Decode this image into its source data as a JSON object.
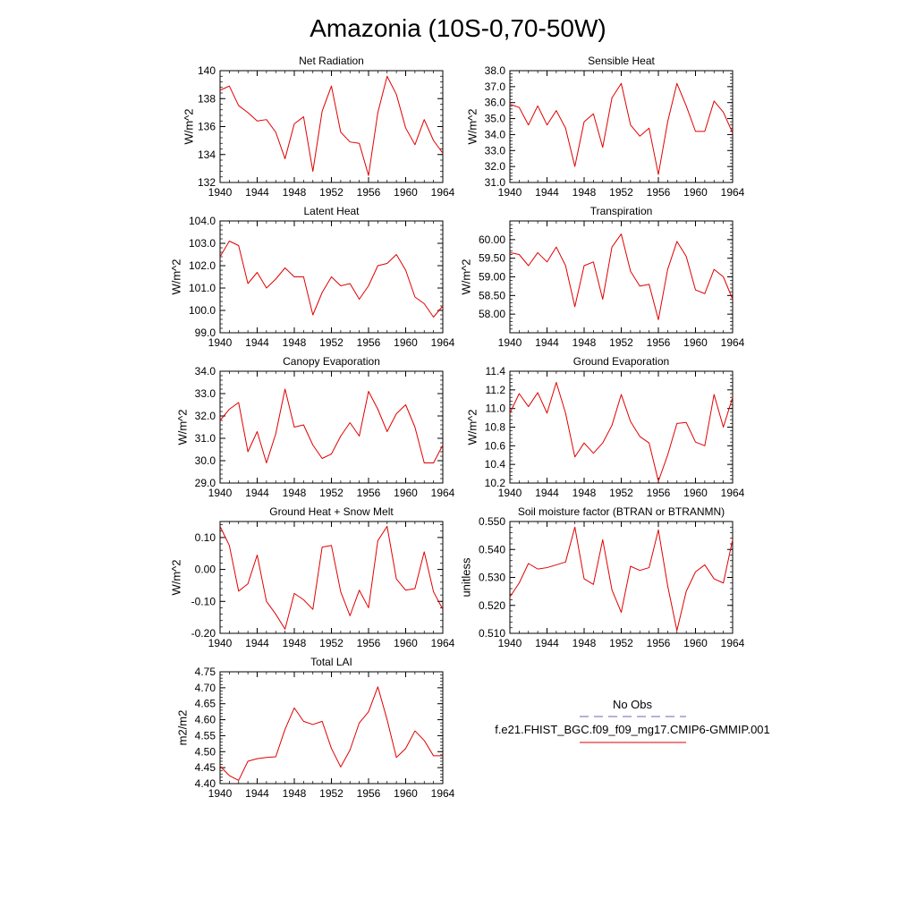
{
  "title": "Amazonia (10S-0,70-50W)",
  "legend": {
    "obs_label": "No Obs",
    "obs_color": "#6666bb",
    "model_label": "f.e21.FHIST_BGC.f09_f09_mg17.CMIP6-GMMIP.001",
    "model_color": "#e00000"
  },
  "chart_data": [
    {
      "type": "line",
      "title": "Net Radiation",
      "ylabel": "W/m^2",
      "xlim": [
        1940,
        1964
      ],
      "ylim": [
        132,
        140
      ],
      "xticks": [
        1940,
        1944,
        1948,
        1952,
        1956,
        1960,
        1964
      ],
      "xtick_labels": [
        "1940",
        "1944",
        "1948",
        "1952",
        "1956",
        "1960",
        "1964"
      ],
      "yticks": [
        132,
        134,
        136,
        138,
        140
      ],
      "ytick_labels": [
        "132",
        "134",
        "136",
        "138",
        "140"
      ],
      "x": [
        1940,
        1941,
        1942,
        1943,
        1944,
        1945,
        1946,
        1947,
        1948,
        1949,
        1950,
        1951,
        1952,
        1953,
        1954,
        1955,
        1956,
        1957,
        1958,
        1959,
        1960,
        1961,
        1962,
        1963,
        1964
      ],
      "series": [
        {
          "values": [
            138.6,
            138.9,
            137.5,
            137.0,
            136.4,
            136.5,
            135.6,
            133.7,
            136.2,
            136.7,
            132.8,
            137.1,
            138.9,
            135.6,
            134.9,
            134.8,
            132.5,
            137.0,
            139.6,
            138.3,
            135.9,
            134.7,
            136.5,
            135.0,
            134.1
          ]
        }
      ]
    },
    {
      "type": "line",
      "title": "Sensible Heat",
      "ylabel": "W/m^2",
      "xlim": [
        1940,
        1964
      ],
      "ylim": [
        31.0,
        38.0
      ],
      "xticks": [
        1940,
        1944,
        1948,
        1952,
        1956,
        1960,
        1964
      ],
      "xtick_labels": [
        "1940",
        "1944",
        "1948",
        "1952",
        "1956",
        "1960",
        "1964"
      ],
      "yticks": [
        31,
        32,
        33,
        34,
        35,
        36,
        37,
        38
      ],
      "ytick_labels": [
        "31.0",
        "32.0",
        "33.0",
        "34.0",
        "35.0",
        "36.0",
        "37.0",
        "38.0"
      ],
      "x": [
        1940,
        1941,
        1942,
        1943,
        1944,
        1945,
        1946,
        1947,
        1948,
        1949,
        1950,
        1951,
        1952,
        1953,
        1954,
        1955,
        1956,
        1957,
        1958,
        1959,
        1960,
        1961,
        1962,
        1963,
        1964
      ],
      "series": [
        {
          "values": [
            35.9,
            35.7,
            34.6,
            35.8,
            34.6,
            35.5,
            34.4,
            32.0,
            34.8,
            35.3,
            33.2,
            36.3,
            37.2,
            34.6,
            33.9,
            34.4,
            31.5,
            34.8,
            37.2,
            35.8,
            34.2,
            34.2,
            36.1,
            35.4,
            34.1
          ]
        }
      ]
    },
    {
      "type": "line",
      "title": "Latent Heat",
      "ylabel": "W/m^2",
      "xlim": [
        1940,
        1964
      ],
      "ylim": [
        99.0,
        104.0
      ],
      "xticks": [
        1940,
        1944,
        1948,
        1952,
        1956,
        1960,
        1964
      ],
      "xtick_labels": [
        "1940",
        "1944",
        "1948",
        "1952",
        "1956",
        "1960",
        "1964"
      ],
      "yticks": [
        99,
        100,
        101,
        102,
        103,
        104
      ],
      "ytick_labels": [
        "99.0",
        "100.0",
        "101.0",
        "102.0",
        "103.0",
        "104.0"
      ],
      "x": [
        1940,
        1941,
        1942,
        1943,
        1944,
        1945,
        1946,
        1947,
        1948,
        1949,
        1950,
        1951,
        1952,
        1953,
        1954,
        1955,
        1956,
        1957,
        1958,
        1959,
        1960,
        1961,
        1962,
        1963,
        1964
      ],
      "series": [
        {
          "values": [
            102.4,
            103.1,
            102.9,
            101.2,
            101.7,
            101.0,
            101.4,
            101.9,
            101.5,
            101.5,
            99.8,
            100.8,
            101.5,
            101.1,
            101.2,
            100.5,
            101.1,
            102.0,
            102.1,
            102.5,
            101.8,
            100.6,
            100.3,
            99.7,
            100.2
          ]
        }
      ]
    },
    {
      "type": "line",
      "title": "Transpiration",
      "ylabel": "W/m^2",
      "xlim": [
        1940,
        1964
      ],
      "ylim": [
        57.5,
        60.5
      ],
      "xticks": [
        1940,
        1944,
        1948,
        1952,
        1956,
        1960,
        1964
      ],
      "xtick_labels": [
        "1940",
        "1944",
        "1948",
        "1952",
        "1956",
        "1960",
        "1964"
      ],
      "yticks": [
        58.0,
        58.5,
        59.0,
        59.5,
        60.0
      ],
      "ytick_labels": [
        "58.00",
        "58.50",
        "59.00",
        "59.50",
        "60.00"
      ],
      "x": [
        1940,
        1941,
        1942,
        1943,
        1944,
        1945,
        1946,
        1947,
        1948,
        1949,
        1950,
        1951,
        1952,
        1953,
        1954,
        1955,
        1956,
        1957,
        1958,
        1959,
        1960,
        1961,
        1962,
        1963,
        1964
      ],
      "series": [
        {
          "values": [
            59.65,
            59.6,
            59.3,
            59.65,
            59.4,
            59.8,
            59.3,
            58.2,
            59.3,
            59.4,
            58.4,
            59.8,
            60.15,
            59.15,
            58.75,
            58.8,
            57.85,
            59.2,
            59.95,
            59.55,
            58.65,
            58.55,
            59.2,
            59.0,
            58.4
          ]
        }
      ]
    },
    {
      "type": "line",
      "title": "Canopy Evaporation",
      "ylabel": "W/m^2",
      "xlim": [
        1940,
        1964
      ],
      "ylim": [
        29.0,
        34.0
      ],
      "xticks": [
        1940,
        1944,
        1948,
        1952,
        1956,
        1960,
        1964
      ],
      "xtick_labels": [
        "1940",
        "1944",
        "1948",
        "1952",
        "1956",
        "1960",
        "1964"
      ],
      "yticks": [
        29,
        30,
        31,
        32,
        33,
        34
      ],
      "ytick_labels": [
        "29.0",
        "30.0",
        "31.0",
        "32.0",
        "33.0",
        "34.0"
      ],
      "x": [
        1940,
        1941,
        1942,
        1943,
        1944,
        1945,
        1946,
        1947,
        1948,
        1949,
        1950,
        1951,
        1952,
        1953,
        1954,
        1955,
        1956,
        1957,
        1958,
        1959,
        1960,
        1961,
        1962,
        1963,
        1964
      ],
      "series": [
        {
          "values": [
            31.8,
            32.3,
            32.6,
            30.4,
            31.3,
            29.9,
            31.2,
            33.2,
            31.5,
            31.6,
            30.7,
            30.1,
            30.3,
            31.1,
            31.7,
            31.1,
            33.1,
            32.3,
            31.3,
            32.1,
            32.5,
            31.5,
            29.9,
            29.9,
            30.7
          ]
        }
      ]
    },
    {
      "type": "line",
      "title": "Ground Evaporation",
      "ylabel": "W/m^2",
      "xlim": [
        1940,
        1964
      ],
      "ylim": [
        10.2,
        11.4
      ],
      "xticks": [
        1940,
        1944,
        1948,
        1952,
        1956,
        1960,
        1964
      ],
      "xtick_labels": [
        "1940",
        "1944",
        "1948",
        "1952",
        "1956",
        "1960",
        "1964"
      ],
      "yticks": [
        10.2,
        10.4,
        10.6,
        10.8,
        11.0,
        11.2,
        11.4
      ],
      "ytick_labels": [
        "10.2",
        "10.4",
        "10.6",
        "10.8",
        "11.0",
        "11.2",
        "11.4"
      ],
      "x": [
        1940,
        1941,
        1942,
        1943,
        1944,
        1945,
        1946,
        1947,
        1948,
        1949,
        1950,
        1951,
        1952,
        1953,
        1954,
        1955,
        1956,
        1957,
        1958,
        1959,
        1960,
        1961,
        1962,
        1963,
        1964
      ],
      "series": [
        {
          "values": [
            10.95,
            11.16,
            11.02,
            11.17,
            10.95,
            11.28,
            10.95,
            10.48,
            10.63,
            10.52,
            10.63,
            10.82,
            11.15,
            10.86,
            10.7,
            10.63,
            10.22,
            10.5,
            10.84,
            10.85,
            10.64,
            10.6,
            11.15,
            10.8,
            11.12
          ]
        }
      ]
    },
    {
      "type": "line",
      "title": "Ground Heat + Snow Melt",
      "ylabel": "W/m^2",
      "xlim": [
        1940,
        1964
      ],
      "ylim": [
        -0.2,
        0.15
      ],
      "xticks": [
        1940,
        1944,
        1948,
        1952,
        1956,
        1960,
        1964
      ],
      "xtick_labels": [
        "1940",
        "1944",
        "1948",
        "1952",
        "1956",
        "1960",
        "1964"
      ],
      "yticks": [
        -0.2,
        -0.1,
        0.0,
        0.1
      ],
      "ytick_labels": [
        "-0.20",
        "-0.10",
        "0.00",
        "0.10"
      ],
      "x": [
        1940,
        1941,
        1942,
        1943,
        1944,
        1945,
        1946,
        1947,
        1948,
        1949,
        1950,
        1951,
        1952,
        1953,
        1954,
        1955,
        1956,
        1957,
        1958,
        1959,
        1960,
        1961,
        1962,
        1963,
        1964
      ],
      "series": [
        {
          "values": [
            0.135,
            0.075,
            -0.068,
            -0.045,
            0.045,
            -0.1,
            -0.14,
            -0.187,
            -0.075,
            -0.095,
            -0.125,
            0.07,
            0.075,
            -0.07,
            -0.145,
            -0.065,
            -0.12,
            0.09,
            0.135,
            -0.03,
            -0.065,
            -0.06,
            0.055,
            -0.07,
            -0.125
          ]
        }
      ]
    },
    {
      "type": "line",
      "title": "Soil moisture factor (BTRAN or BTRANMN)",
      "ylabel": "unitless",
      "xlim": [
        1940,
        1964
      ],
      "ylim": [
        0.51,
        0.55
      ],
      "xticks": [
        1940,
        1944,
        1948,
        1952,
        1956,
        1960,
        1964
      ],
      "xtick_labels": [
        "1940",
        "1944",
        "1948",
        "1952",
        "1956",
        "1960",
        "1964"
      ],
      "yticks": [
        0.51,
        0.52,
        0.53,
        0.54,
        0.55
      ],
      "ytick_labels": [
        "0.510",
        "0.520",
        "0.530",
        "0.540",
        "0.550"
      ],
      "x": [
        1940,
        1941,
        1942,
        1943,
        1944,
        1945,
        1946,
        1947,
        1948,
        1949,
        1950,
        1951,
        1952,
        1953,
        1954,
        1955,
        1956,
        1957,
        1958,
        1959,
        1960,
        1961,
        1962,
        1963,
        1964
      ],
      "series": [
        {
          "values": [
            0.523,
            0.528,
            0.535,
            0.533,
            0.5335,
            0.5345,
            0.5355,
            0.548,
            0.5295,
            0.5275,
            0.5435,
            0.5255,
            0.5175,
            0.534,
            0.5325,
            0.5335,
            0.547,
            0.527,
            0.511,
            0.525,
            0.532,
            0.5345,
            0.5295,
            0.528,
            0.5435
          ]
        }
      ]
    },
    {
      "type": "line",
      "title": "Total LAI",
      "ylabel": "m2/m2",
      "xlim": [
        1940,
        1964
      ],
      "ylim": [
        4.4,
        4.75
      ],
      "xticks": [
        1940,
        1944,
        1948,
        1952,
        1956,
        1960,
        1964
      ],
      "xtick_labels": [
        "1940",
        "1944",
        "1948",
        "1952",
        "1956",
        "1960",
        "1964"
      ],
      "yticks": [
        4.4,
        4.45,
        4.5,
        4.55,
        4.6,
        4.65,
        4.7,
        4.75
      ],
      "ytick_labels": [
        "4.40",
        "4.45",
        "4.50",
        "4.55",
        "4.60",
        "4.65",
        "4.70",
        "4.75"
      ],
      "x": [
        1940,
        1941,
        1942,
        1943,
        1944,
        1945,
        1946,
        1947,
        1948,
        1949,
        1950,
        1951,
        1952,
        1953,
        1954,
        1955,
        1956,
        1957,
        1958,
        1959,
        1960,
        1961,
        1962,
        1963,
        1964
      ],
      "series": [
        {
          "values": [
            4.455,
            4.425,
            4.41,
            4.47,
            4.478,
            4.482,
            4.484,
            4.57,
            4.637,
            4.595,
            4.585,
            4.595,
            4.51,
            4.452,
            4.505,
            4.59,
            4.625,
            4.703,
            4.6,
            4.482,
            4.51,
            4.565,
            4.535,
            4.487,
            4.487
          ]
        }
      ]
    }
  ]
}
